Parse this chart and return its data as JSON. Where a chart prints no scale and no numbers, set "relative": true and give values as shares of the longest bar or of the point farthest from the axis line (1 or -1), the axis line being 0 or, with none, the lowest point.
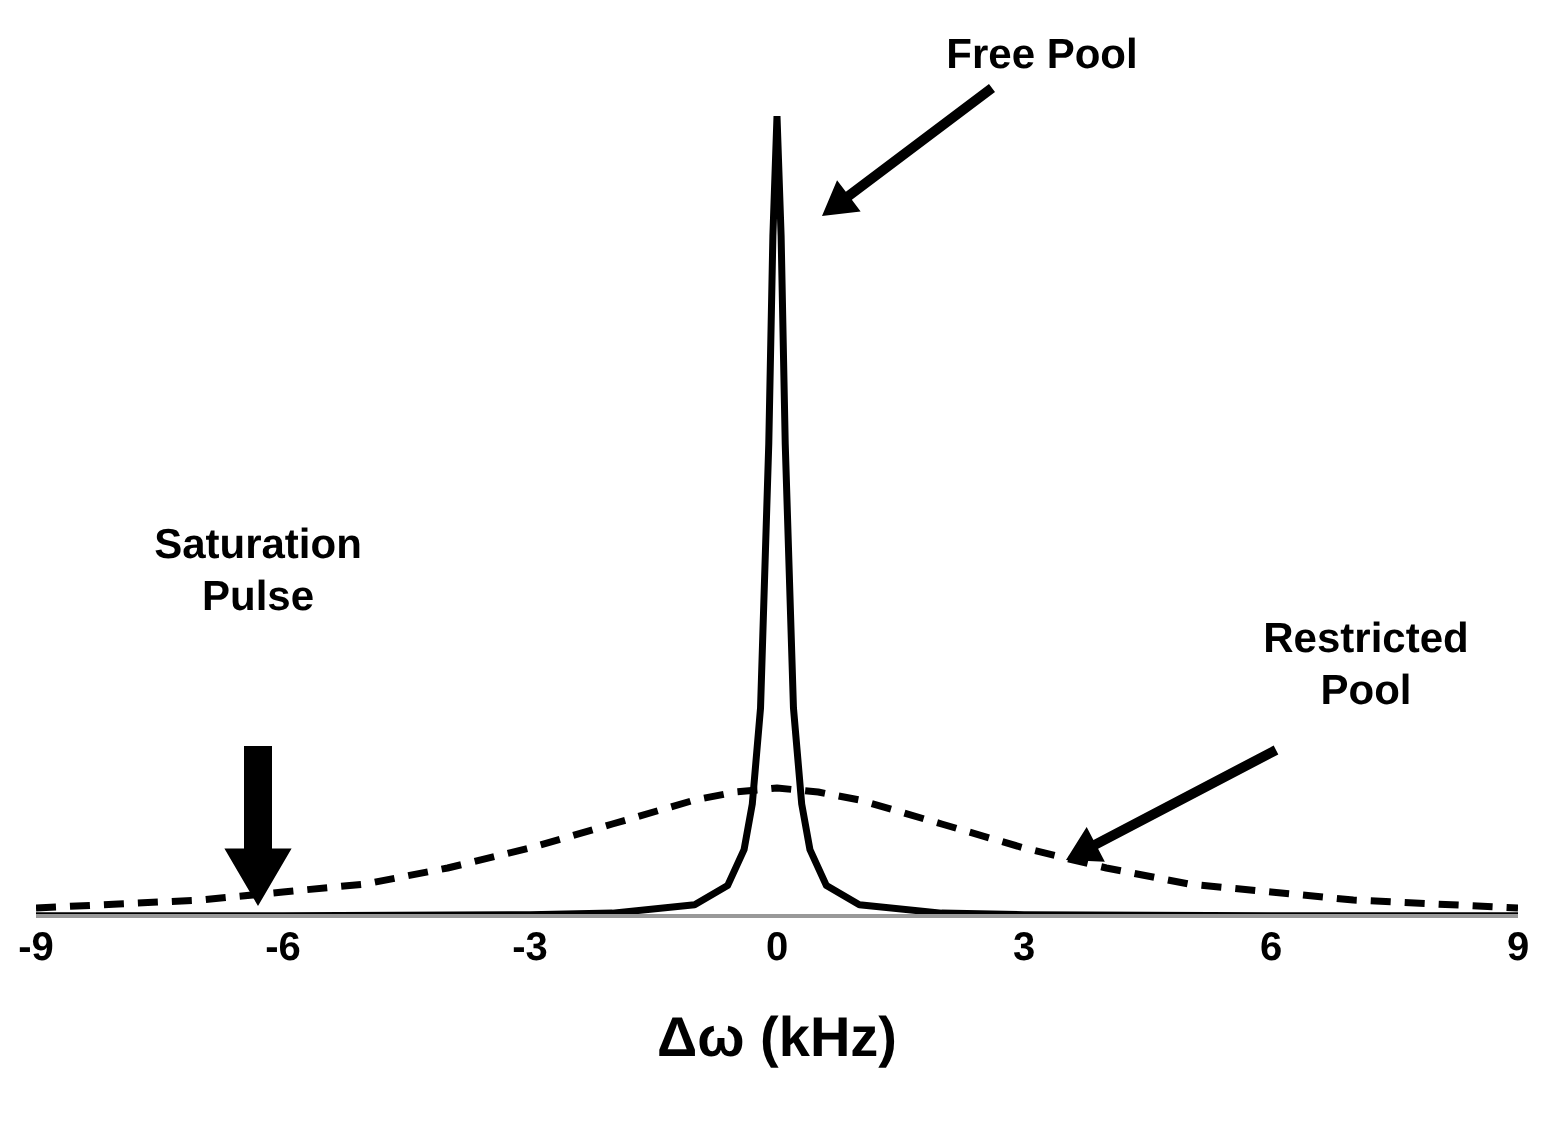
{
  "chart_data": {
    "type": "line",
    "relative": true,
    "xlabel": "Δω (kHz)",
    "xlim": [
      -9,
      9
    ],
    "xticks": [
      -9,
      -6,
      -3,
      0,
      3,
      6,
      9
    ],
    "marker": "none",
    "series": [
      {
        "name": null,
        "color": "#000000",
        "line_style": "dashed",
        "x": [
          -9,
          -8,
          -7,
          -6,
          -5,
          -4,
          -3,
          -2,
          -1,
          -0.5,
          0,
          0.5,
          1,
          2,
          3,
          4,
          5,
          6,
          7,
          8,
          9
        ],
        "values": [
          0.01,
          0.015,
          0.02,
          0.03,
          0.04,
          0.06,
          0.085,
          0.115,
          0.145,
          0.155,
          0.16,
          0.155,
          0.145,
          0.115,
          0.085,
          0.06,
          0.04,
          0.03,
          0.02,
          0.015,
          0.01
        ]
      },
      {
        "name": null,
        "color": "#000000",
        "line_style": "solid",
        "x": [
          -9,
          -6,
          -3,
          -2,
          -1,
          -0.6,
          -0.4,
          -0.3,
          -0.2,
          -0.1,
          -0.05,
          0,
          0.05,
          0.1,
          0.2,
          0.3,
          0.4,
          0.6,
          1,
          2,
          3,
          6,
          9
        ],
        "values": [
          0.0002,
          0.0004,
          0.0016,
          0.0036,
          0.014,
          0.038,
          0.083,
          0.14,
          0.26,
          0.59,
          0.85,
          1,
          0.85,
          0.59,
          0.26,
          0.14,
          0.083,
          0.038,
          0.014,
          0.0036,
          0.0016,
          0.0004,
          0.0002
        ]
      }
    ],
    "annotations": [
      "Free Pool",
      "Restricted Pool",
      "Saturation Pulse"
    ]
  }
}
